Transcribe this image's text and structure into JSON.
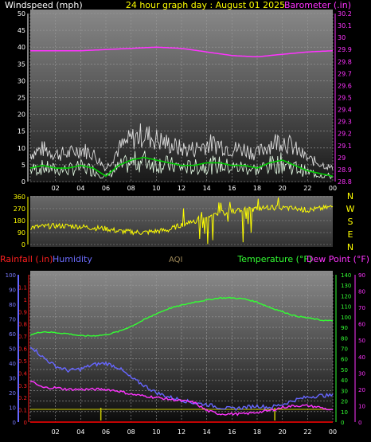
{
  "header": {
    "windspeed_label": "Windspeed (mph)",
    "title": "24 hour graph day : August 01 2025",
    "barometer_label": "Barometer (.in)"
  },
  "lower_header": {
    "rainfall_label": "Rainfall (.in)",
    "humidity_label": "Humidity",
    "aqi_label": "AQI",
    "temperature_label": "Temperature (°F)",
    "dewpoint_label": "Dew Point (°F)"
  },
  "colors": {
    "windspeed": "#ffffff",
    "gust": "#dddddd",
    "wind_avg": "#00cc00",
    "barometer": "#ff33ff",
    "direction": "#ffff00",
    "rain": "#ff0000",
    "humidity": "#6666ff",
    "temperature": "#33ff33",
    "dewpoint": "#ff33ff",
    "rain_bar": "#cccc00"
  },
  "chart_data": [
    {
      "type": "line",
      "title": "24 hour graph day : August 01 2025",
      "x_ticks": [
        "02",
        "04",
        "06",
        "08",
        "10",
        "12",
        "14",
        "16",
        "18",
        "20",
        "22",
        "00"
      ],
      "x_hours": [
        0,
        2,
        4,
        6,
        8,
        10,
        12,
        14,
        16,
        18,
        20,
        22,
        24
      ],
      "left_axis": {
        "label": "Windspeed (mph)",
        "ticks": [
          0,
          5,
          10,
          15,
          20,
          25,
          30,
          35,
          40,
          45,
          50
        ],
        "ylim": [
          0,
          50
        ]
      },
      "right_axis": {
        "label": "Barometer (.in)",
        "ticks": [
          "28.8",
          "28.9",
          "29",
          "29.1",
          "29.2",
          "29.3",
          "29.4",
          "29.5",
          "29.6",
          "29.7",
          "29.8",
          "29.9",
          "30",
          "30.1",
          "30.2"
        ],
        "ylim": [
          28.8,
          30.2
        ]
      },
      "series": [
        {
          "name": "Windspeed (mph)",
          "axis": "left",
          "hours": [
            0,
            1,
            2,
            3,
            4,
            5,
            6,
            7,
            8,
            9,
            10,
            11,
            12,
            13,
            14,
            15,
            16,
            17,
            18,
            19,
            20,
            21,
            22,
            23,
            24
          ],
          "values": [
            5,
            6,
            5,
            5,
            6,
            5,
            2,
            6,
            8,
            9,
            8,
            7,
            6,
            6,
            7,
            7,
            6,
            6,
            5,
            7,
            8,
            6,
            4,
            3,
            2
          ]
        },
        {
          "name": "Barometer (.in)",
          "axis": "right",
          "hours": [
            0,
            2,
            4,
            6,
            8,
            10,
            12,
            14,
            16,
            18,
            20,
            22,
            24
          ],
          "values": [
            29.89,
            29.89,
            29.89,
            29.9,
            29.91,
            29.92,
            29.91,
            29.88,
            29.85,
            29.84,
            29.86,
            29.88,
            29.89
          ]
        }
      ]
    },
    {
      "type": "scatter",
      "axis": {
        "ticks": [
          0,
          90,
          180,
          270,
          360
        ],
        "ylim": [
          0,
          360
        ]
      },
      "compass": [
        "N",
        "W",
        "S",
        "E",
        "N"
      ],
      "series": [
        {
          "name": "Wind direction",
          "hours": [
            0,
            1,
            2,
            3,
            4,
            5,
            6,
            7,
            8,
            9,
            10,
            11,
            12,
            13,
            14,
            15,
            16,
            17,
            18,
            19,
            20,
            21,
            22,
            23,
            24
          ],
          "values": [
            130,
            135,
            140,
            140,
            135,
            125,
            120,
            100,
            95,
            90,
            100,
            110,
            150,
            180,
            210,
            240,
            250,
            260,
            270,
            280,
            275,
            270,
            260,
            270,
            285
          ]
        }
      ]
    },
    {
      "type": "line",
      "axes": {
        "rain": {
          "label": "Rainfall (.in)",
          "ticks": [
            "0",
            "0.1",
            "0.2",
            "0.3",
            "0.4",
            "0.5",
            "0.6",
            "0.7",
            "0.8",
            "0.9",
            "1",
            "1.1"
          ],
          "ylim": [
            0,
            1.2
          ]
        },
        "humidity": {
          "label": "Humidity",
          "ticks": [
            0,
            10,
            20,
            30,
            40,
            50,
            60,
            70,
            80,
            90,
            100
          ],
          "ylim": [
            0,
            100
          ]
        },
        "temperature": {
          "label": "Temperature (°F)",
          "ticks": [
            0,
            10,
            20,
            30,
            40,
            50,
            60,
            70,
            80,
            90,
            100,
            110,
            120,
            130,
            140
          ],
          "ylim": [
            0,
            140
          ]
        },
        "dewpoint": {
          "label": "Dew Point (°F)",
          "ticks": [
            0,
            10,
            20,
            30,
            40,
            50,
            60,
            70,
            80,
            90
          ],
          "ylim": [
            0,
            90
          ]
        }
      },
      "series": [
        {
          "name": "Humidity",
          "axis": "humidity",
          "hours": [
            0,
            1,
            2,
            3,
            4,
            5,
            6,
            7,
            8,
            9,
            10,
            11,
            12,
            13,
            14,
            15,
            16,
            17,
            18,
            19,
            20,
            21,
            22,
            23,
            24
          ],
          "values": [
            52,
            44,
            38,
            35,
            36,
            39,
            40,
            37,
            30,
            25,
            20,
            17,
            15,
            13,
            12,
            10,
            9,
            10,
            11,
            10,
            12,
            15,
            17,
            18,
            18
          ]
        },
        {
          "name": "Temperature (°F)",
          "axis": "temperature",
          "hours": [
            0,
            1,
            2,
            3,
            4,
            5,
            6,
            7,
            8,
            9,
            10,
            11,
            12,
            13,
            14,
            15,
            16,
            17,
            18,
            19,
            20,
            21,
            22,
            23,
            24
          ],
          "values": [
            83,
            86,
            85,
            84,
            82,
            82,
            83,
            86,
            91,
            97,
            103,
            108,
            111,
            114,
            116,
            118,
            118,
            117,
            114,
            109,
            105,
            101,
            99,
            97,
            96
          ]
        },
        {
          "name": "Dew Point (°F)",
          "axis": "dewpoint",
          "hours": [
            0,
            1,
            2,
            3,
            4,
            5,
            6,
            7,
            8,
            9,
            10,
            11,
            12,
            13,
            14,
            15,
            16,
            17,
            18,
            19,
            20,
            21,
            22,
            23,
            24
          ],
          "values": [
            25,
            21,
            21,
            20,
            20,
            20,
            20,
            19,
            17,
            16,
            15,
            14,
            13,
            12,
            7,
            5,
            5,
            5,
            6,
            7,
            9,
            10,
            10,
            9,
            7
          ]
        },
        {
          "name": "Rainfall (.in)",
          "axis": "rain",
          "hours": [
            0,
            24
          ],
          "values": [
            0,
            0
          ]
        }
      ],
      "rain_marks_hours": [
        5.6,
        19.4
      ]
    }
  ]
}
